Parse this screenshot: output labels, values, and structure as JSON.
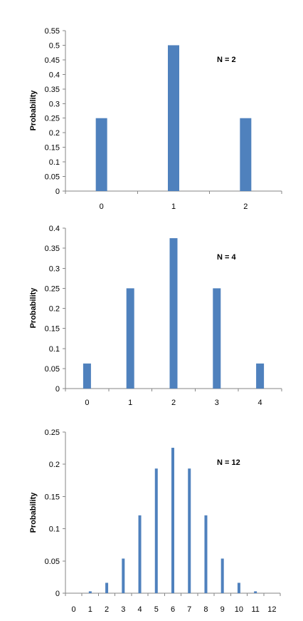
{
  "chart_data": [
    {
      "type": "bar",
      "annotation": "N = 2",
      "ylabel": "Probability",
      "xlabel": "",
      "categories": [
        "0",
        "1",
        "2"
      ],
      "values": [
        0.25,
        0.5,
        0.25
      ],
      "ylim": [
        0,
        0.55
      ],
      "yticks": [
        "0",
        "0.05",
        "0.1",
        "0.15",
        "0.2",
        "0.25",
        "0.3",
        "0.35",
        "0.4",
        "0.45",
        "0.5",
        "0.55"
      ],
      "grid": false,
      "bar_color": "#4F81BD"
    },
    {
      "type": "bar",
      "annotation": "N = 4",
      "ylabel": "Probability",
      "xlabel": "",
      "categories": [
        "0",
        "1",
        "2",
        "3",
        "4"
      ],
      "values": [
        0.0625,
        0.25,
        0.375,
        0.25,
        0.0625
      ],
      "ylim": [
        0,
        0.4
      ],
      "yticks": [
        "0",
        "0.05",
        "0.1",
        "0.15",
        "0.2",
        "0.25",
        "0.3",
        "0.35",
        "0.4"
      ],
      "grid": false,
      "bar_color": "#4F81BD"
    },
    {
      "type": "bar",
      "annotation": "N = 12",
      "ylabel": "Probability",
      "xlabel": "",
      "categories": [
        "0",
        "1",
        "2",
        "3",
        "4",
        "5",
        "6",
        "7",
        "8",
        "9",
        "10",
        "11",
        "12"
      ],
      "values": [
        0.0002,
        0.0029,
        0.0161,
        0.0537,
        0.1208,
        0.1934,
        0.2256,
        0.1934,
        0.1208,
        0.0537,
        0.0161,
        0.0029,
        0.0002
      ],
      "ylim": [
        0,
        0.25
      ],
      "yticks": [
        "0",
        "0.05",
        "0.1",
        "0.15",
        "0.2",
        "0.25"
      ],
      "grid": false,
      "bar_color": "#4F81BD"
    }
  ]
}
